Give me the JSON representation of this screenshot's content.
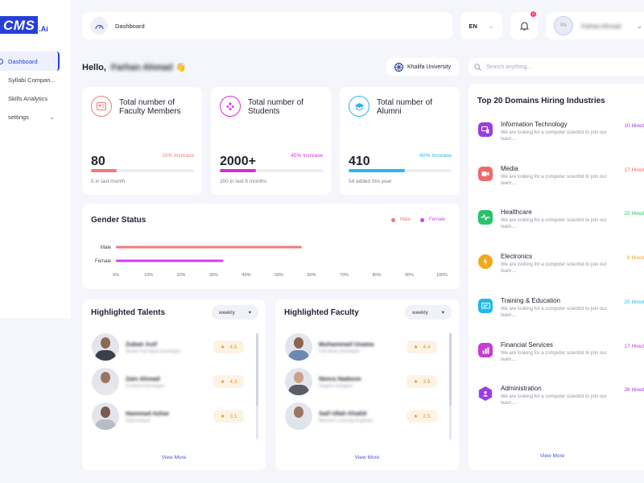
{
  "logo": {
    "main": "CMS",
    "suffix": ".Ai"
  },
  "sidebar": {
    "items": [
      {
        "label": "Dashboard"
      },
      {
        "label": "Syllabi Compari..."
      },
      {
        "label": "Skills Analytics"
      },
      {
        "label": "settings"
      }
    ]
  },
  "header": {
    "title": "Dashboard",
    "language": "EN",
    "notification_count": "0",
    "avatar_initials": "FA",
    "user_name": "Farhan Ahmad"
  },
  "greeting": {
    "prefix": "Hello,",
    "name": "Farhan Ahmad",
    "emoji": "👋"
  },
  "university": "Khalifa University",
  "search": {
    "placeholder": "Search anything..."
  },
  "stats": [
    {
      "title": "Total number of Faculty Members",
      "value": "80",
      "increase": "15% Increase",
      "sub": "5 in last month",
      "progress": 0.25,
      "color": "#f07a7a",
      "icon": "id-card-icon"
    },
    {
      "title": "Total number of Students",
      "value": "2000+",
      "increase": "45% Increase",
      "sub": "200 in last 6 months",
      "progress": 0.35,
      "color": "#d42fd8",
      "icon": "students-group-icon"
    },
    {
      "title": "Total number of Alumni",
      "value": "410",
      "increase": "60% Increase",
      "sub": "54 added this year",
      "progress": 0.55,
      "color": "#29b8e8",
      "icon": "graduation-cap-icon"
    }
  ],
  "chart_data": {
    "type": "bar",
    "orientation": "horizontal",
    "title": "Gender Status",
    "categories": [
      "Male",
      "Female"
    ],
    "values": [
      57,
      33
    ],
    "colors": [
      "#f07a7a",
      "#d042e6"
    ],
    "legend": [
      "Male",
      "Female"
    ],
    "legend_position": "top-right",
    "xlim": [
      0,
      100
    ],
    "xticks": [
      "0%",
      "10%",
      "20%",
      "30%",
      "40%",
      "50%",
      "60%",
      "70%",
      "80%",
      "90%",
      "100%"
    ],
    "grid": false
  },
  "talents": {
    "title": "Highlighted Talents",
    "filter": "weekly",
    "view_more": "View More",
    "people": [
      {
        "name": "Zubair Asif",
        "role": "Senior Full Stack Developer",
        "rating": "4.5"
      },
      {
        "name": "Zain Ahmad",
        "role": "Frontend Developer",
        "rating": "4.3"
      },
      {
        "name": "Hammad Azhar",
        "role": "SQA analyst",
        "rating": "3.1"
      }
    ]
  },
  "faculty": {
    "title": "Highlighted Faculty",
    "filter": "weekly",
    "view_more": "View More",
    "people": [
      {
        "name": "Muhammad Usama",
        "role": "Full Stack Developer",
        "rating": "4.4"
      },
      {
        "name": "Nimra Nadeem",
        "role": "Graphic Designer",
        "rating": "3.9"
      },
      {
        "name": "Saif Ullah Khalid",
        "role": "Machine Learning Engineer",
        "rating": "2.5"
      }
    ]
  },
  "domains": {
    "title": "Top 20 Domains Hiring Industries",
    "view_more": "View More",
    "items": [
      {
        "name": "Information Technology",
        "desc": "We are looking for a computer scientist to join our team....",
        "hired": "10 Hired",
        "color": "#9b3de0",
        "icon": "devices-icon"
      },
      {
        "name": "Media",
        "desc": "We are looking for a computer scientist to join our team....",
        "hired": "17 Hired",
        "color": "#ee6a6a",
        "icon": "video-camera-icon"
      },
      {
        "name": "Healthcare",
        "desc": "We are looking for a computer scientist to join our team....",
        "hired": "22 Hired",
        "color": "#27c26a",
        "icon": "heartbeat-icon"
      },
      {
        "name": "Electronics",
        "desc": "We are looking for a computer scientist to join our team....",
        "hired": "8 Hired",
        "color": "#f2a81d",
        "icon": "lightbulb-icon"
      },
      {
        "name": "Training & Education",
        "desc": "We are looking for a computer scientist to join our team....",
        "hired": "20 Hired",
        "color": "#22b6ea",
        "icon": "training-board-icon"
      },
      {
        "name": "Financial Services",
        "desc": "We are looking for a computer scientist to join our team....",
        "hired": "17 Hired",
        "color": "#c93ad6",
        "icon": "bar-chart-icon"
      },
      {
        "name": "Administration",
        "desc": "We are looking for a computer scientist to join our team....",
        "hired": "26 Hired",
        "color": "#9b3de0",
        "icon": "admin-hexagon-icon"
      }
    ]
  },
  "colors": {
    "accent": "#2540d8",
    "page_bg": "#f5f6fb",
    "card_bg": "#ffffff"
  }
}
